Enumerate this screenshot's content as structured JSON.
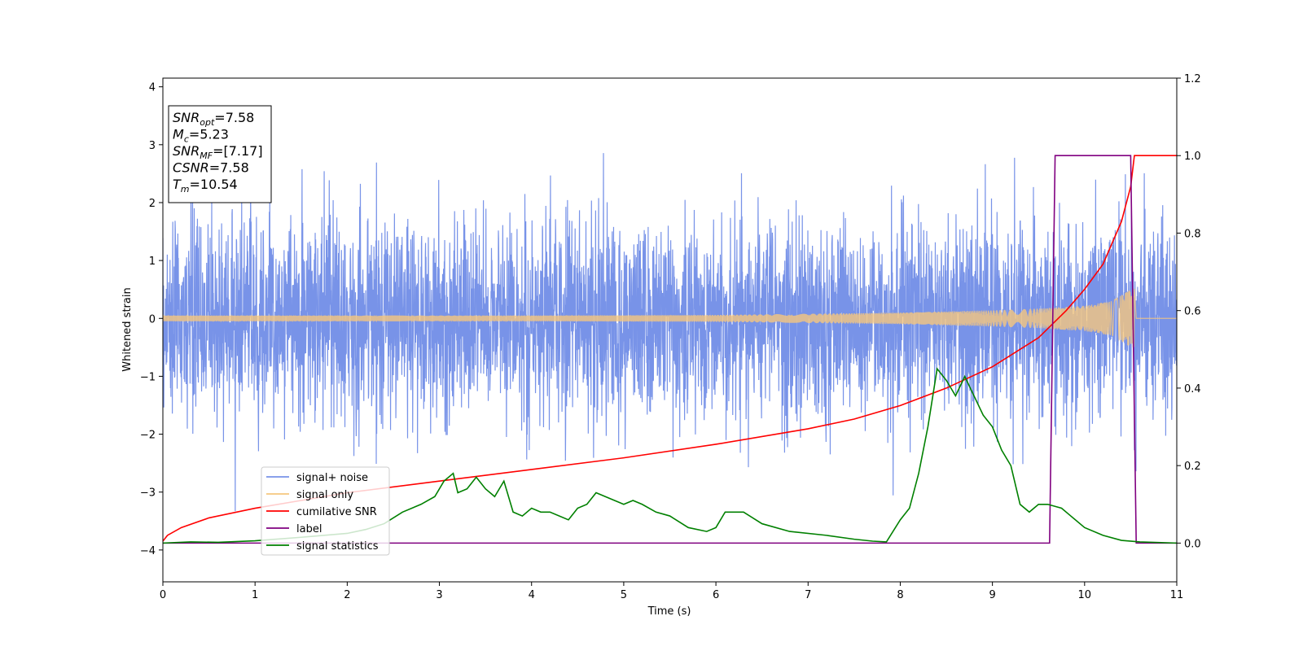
{
  "chart_data": {
    "type": "line",
    "xlabel": "Time (s)",
    "ylabel": "Whitened strain",
    "xlim": [
      0,
      11
    ],
    "ylim_left": [
      -4.55,
      4.15
    ],
    "ylim_right": [
      -0.1,
      1.2
    ],
    "xticks": [
      0,
      1,
      2,
      3,
      4,
      5,
      6,
      7,
      8,
      9,
      10,
      11
    ],
    "yticks_left": [
      -4,
      -3,
      -2,
      -1,
      0,
      1,
      2,
      3,
      4
    ],
    "yticks_right": [
      0.0,
      0.2,
      0.4,
      0.6,
      0.8,
      1.0,
      1.2
    ],
    "grid": false,
    "legend_position": "lower-left",
    "info_box": {
      "position": "upper-left",
      "lines": [
        {
          "sym": "SNR",
          "sub": "opt",
          "value": "=7.58"
        },
        {
          "sym": "M",
          "sub": "c",
          "value": "=5.23"
        },
        {
          "sym": "SNR",
          "sub": "MF",
          "value": "=[7.17]"
        },
        {
          "sym": "CSNR",
          "sub": "",
          "value": "=7.58"
        },
        {
          "sym": "T",
          "sub": "m",
          "value": "=10.54"
        }
      ]
    },
    "series": [
      {
        "name": "signal+ noise",
        "axis": "left",
        "color": "#7893e8",
        "description_type": "noise-band",
        "std": 0.85,
        "merger_time": 10.54
      },
      {
        "name": "signal only",
        "axis": "left",
        "color": "#f5c77e",
        "description_type": "chirp-envelope",
        "amplitude_points": {
          "x": [
            0,
            2,
            4,
            6,
            7,
            8,
            9,
            9.5,
            10,
            10.3,
            10.5,
            10.54,
            10.56,
            11
          ],
          "y": [
            0.05,
            0.05,
            0.05,
            0.06,
            0.08,
            0.1,
            0.14,
            0.17,
            0.22,
            0.3,
            0.5,
            0.52,
            0.0,
            0.0
          ]
        }
      },
      {
        "name": "cumilative SNR",
        "axis": "right",
        "color": "#ff0000",
        "x": [
          0,
          0.05,
          0.2,
          0.5,
          1,
          1.5,
          2,
          3,
          4,
          5,
          6,
          7,
          7.5,
          8,
          8.5,
          9,
          9.5,
          9.8,
          10,
          10.2,
          10.4,
          10.5,
          10.54,
          11
        ],
        "y": [
          0.005,
          0.02,
          0.04,
          0.065,
          0.09,
          0.11,
          0.13,
          0.16,
          0.19,
          0.22,
          0.255,
          0.295,
          0.32,
          0.355,
          0.4,
          0.455,
          0.53,
          0.6,
          0.655,
          0.72,
          0.83,
          0.92,
          1.0,
          1.0
        ]
      },
      {
        "name": "label",
        "axis": "right",
        "color": "#800080",
        "x": [
          0,
          9.62,
          9.68,
          10.5,
          10.56,
          11
        ],
        "y": [
          0,
          0,
          1.0,
          1.0,
          0,
          0
        ]
      },
      {
        "name": "signal statistics",
        "axis": "right",
        "color": "#008000",
        "x": [
          0,
          0.3,
          0.6,
          1.0,
          1.5,
          2.0,
          2.2,
          2.4,
          2.6,
          2.8,
          2.95,
          3.05,
          3.15,
          3.2,
          3.3,
          3.4,
          3.5,
          3.6,
          3.7,
          3.8,
          3.9,
          4.0,
          4.1,
          4.2,
          4.4,
          4.5,
          4.6,
          4.7,
          4.8,
          4.9,
          5.0,
          5.1,
          5.2,
          5.35,
          5.5,
          5.7,
          5.9,
          6.0,
          6.1,
          6.3,
          6.5,
          6.8,
          7.2,
          7.5,
          7.7,
          7.85,
          8.0,
          8.1,
          8.2,
          8.3,
          8.4,
          8.5,
          8.6,
          8.7,
          8.8,
          8.9,
          9.0,
          9.1,
          9.2,
          9.3,
          9.4,
          9.5,
          9.6,
          9.75,
          9.85,
          10.0,
          10.2,
          10.4,
          10.6,
          11.0
        ],
        "y": [
          0.0,
          0.003,
          0.002,
          0.006,
          0.015,
          0.025,
          0.035,
          0.05,
          0.08,
          0.1,
          0.12,
          0.16,
          0.18,
          0.13,
          0.14,
          0.17,
          0.14,
          0.12,
          0.16,
          0.08,
          0.07,
          0.09,
          0.08,
          0.08,
          0.06,
          0.09,
          0.1,
          0.13,
          0.12,
          0.11,
          0.1,
          0.11,
          0.1,
          0.08,
          0.07,
          0.04,
          0.03,
          0.04,
          0.08,
          0.08,
          0.05,
          0.03,
          0.02,
          0.01,
          0.005,
          0.003,
          0.06,
          0.09,
          0.18,
          0.3,
          0.45,
          0.42,
          0.38,
          0.43,
          0.38,
          0.33,
          0.3,
          0.24,
          0.2,
          0.1,
          0.08,
          0.1,
          0.1,
          0.09,
          0.07,
          0.04,
          0.02,
          0.007,
          0.003,
          0.0
        ]
      }
    ]
  }
}
